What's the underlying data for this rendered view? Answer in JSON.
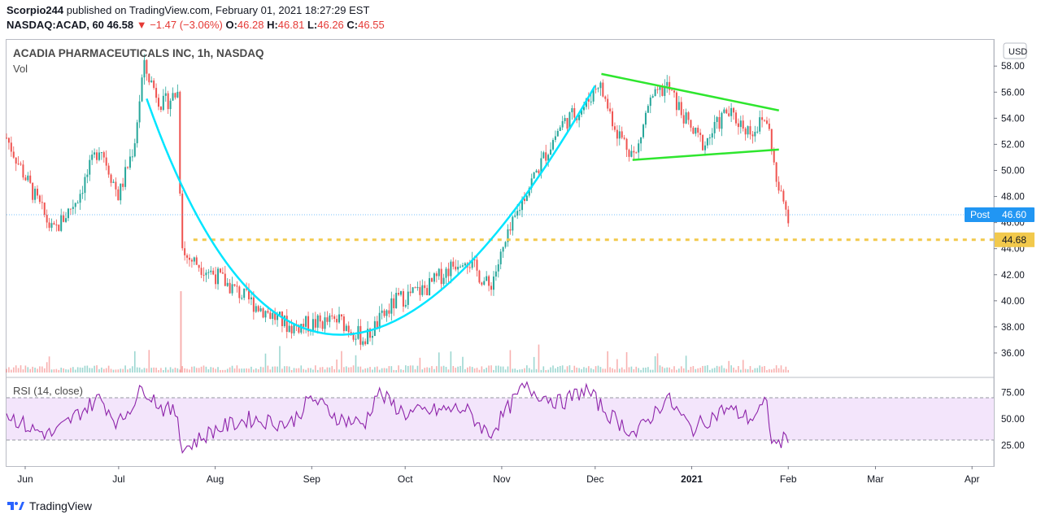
{
  "header": {
    "publisher": "Scorpio244",
    "published_text": "published on TradingView.com, February 01, 2021 18:27:29 EST",
    "symbol": "NASDAQ:ACAD, 60",
    "last": "46.58",
    "change": "−1.47 (−3.06%)",
    "o_label": "O:",
    "o_value": "46.28",
    "h_label": "H:",
    "h_value": "46.81",
    "l_label": "L:",
    "l_value": "46.26",
    "c_label": "C:",
    "c_value": "46.55"
  },
  "pane": {
    "title": "ACADIA PHARMACEUTICALS INC, 1h, NASDAQ",
    "vol_label": "Vol",
    "currency": "USD",
    "rsi_label": "RSI (14, close)",
    "post_label": "Post",
    "post_value": "46.60",
    "level_value": "44.68"
  },
  "footer": {
    "brand": "TradingView"
  },
  "colors": {
    "up": "#26a69a",
    "down": "#ef5350",
    "cup": "#00e5ff",
    "triangle": "#2ee62e",
    "support": "#f2c94c",
    "rsi": "#8e24aa",
    "rsi_band": "#f3e5fb",
    "post": "#2196f3"
  },
  "chart_data": {
    "type": "candlestick",
    "title": "ACADIA PHARMACEUTICALS INC, 1h, NASDAQ",
    "y_ticks": [
      "58.00",
      "56.00",
      "54.00",
      "52.00",
      "50.00",
      "48.00",
      "46.00",
      "44.00",
      "42.00",
      "40.00",
      "38.00",
      "36.00"
    ],
    "ylim": [
      34.5,
      59.2
    ],
    "x_ticks": [
      "Jun",
      "Jul",
      "Aug",
      "Sep",
      "Oct",
      "Nov",
      "Dec",
      "2021",
      "Feb",
      "Mar",
      "Apr"
    ],
    "price_path": [
      {
        "x": "May 26",
        "y": 52.5
      },
      {
        "x": "Jun 03",
        "y": 48.5
      },
      {
        "x": "Jun 10",
        "y": 45.2
      },
      {
        "x": "Jun 18",
        "y": 48.0
      },
      {
        "x": "Jun 25",
        "y": 52.0
      },
      {
        "x": "Jul 01",
        "y": 48.0
      },
      {
        "x": "Jul 06",
        "y": 52.0
      },
      {
        "x": "Jul 09",
        "y": 58.0
      },
      {
        "x": "Jul 15",
        "y": 55.0
      },
      {
        "x": "Jul 20",
        "y": 56.0
      },
      {
        "x": "Jul 21",
        "y": 45.5
      },
      {
        "x": "Jul 22",
        "y": 43.5
      },
      {
        "x": "Aug 01",
        "y": 42.0
      },
      {
        "x": "Aug 12",
        "y": 40.0
      },
      {
        "x": "Aug 25",
        "y": 38.0
      },
      {
        "x": "Sep 10",
        "y": 38.5
      },
      {
        "x": "Sep 18",
        "y": 37.0
      },
      {
        "x": "Sep 28",
        "y": 40.0
      },
      {
        "x": "Oct 08",
        "y": 41.0
      },
      {
        "x": "Oct 20",
        "y": 43.5
      },
      {
        "x": "Oct 28",
        "y": 41.0
      },
      {
        "x": "Nov 08",
        "y": 48.0
      },
      {
        "x": "Nov 20",
        "y": 53.5
      },
      {
        "x": "Nov 28",
        "y": 55.0
      },
      {
        "x": "Dec 02",
        "y": 56.8
      },
      {
        "x": "Dec 08",
        "y": 53.0
      },
      {
        "x": "Dec 14",
        "y": 51.0
      },
      {
        "x": "Dec 18",
        "y": 55.0
      },
      {
        "x": "Dec 24",
        "y": 56.5
      },
      {
        "x": "Jan 01",
        "y": 53.0
      },
      {
        "x": "Jan 05",
        "y": 52.0
      },
      {
        "x": "Jan 12",
        "y": 54.5
      },
      {
        "x": "Jan 20",
        "y": 53.0
      },
      {
        "x": "Jan 25",
        "y": 54.0
      },
      {
        "x": "Jan 27",
        "y": 51.5
      },
      {
        "x": "Jan 28",
        "y": 49.0
      },
      {
        "x": "Feb 01",
        "y": 46.6
      }
    ],
    "rsi": {
      "levels": [
        25.0,
        50.0,
        75.0
      ],
      "band": [
        30,
        70
      ],
      "path": [
        {
          "x": "May 26",
          "y": 55
        },
        {
          "x": "Jun 03",
          "y": 40
        },
        {
          "x": "Jun 10",
          "y": 35
        },
        {
          "x": "Jun 18",
          "y": 55
        },
        {
          "x": "Jun 25",
          "y": 70
        },
        {
          "x": "Jul 01",
          "y": 45
        },
        {
          "x": "Jul 09",
          "y": 80
        },
        {
          "x": "Jul 15",
          "y": 60
        },
        {
          "x": "Jul 20",
          "y": 55
        },
        {
          "x": "Jul 21",
          "y": 20
        },
        {
          "x": "Aug 01",
          "y": 40
        },
        {
          "x": "Aug 12",
          "y": 50
        },
        {
          "x": "Aug 25",
          "y": 45
        },
        {
          "x": "Sep 01",
          "y": 70
        },
        {
          "x": "Sep 10",
          "y": 50
        },
        {
          "x": "Sep 18",
          "y": 45
        },
        {
          "x": "Sep 22",
          "y": 75
        },
        {
          "x": "Oct 01",
          "y": 55
        },
        {
          "x": "Oct 20",
          "y": 60
        },
        {
          "x": "Oct 28",
          "y": 35
        },
        {
          "x": "Nov 08",
          "y": 80
        },
        {
          "x": "Nov 20",
          "y": 65
        },
        {
          "x": "Nov 28",
          "y": 78
        },
        {
          "x": "Dec 05",
          "y": 55
        },
        {
          "x": "Dec 14",
          "y": 35
        },
        {
          "x": "Dec 24",
          "y": 70
        },
        {
          "x": "Jan 01",
          "y": 40
        },
        {
          "x": "Jan 12",
          "y": 60
        },
        {
          "x": "Jan 20",
          "y": 50
        },
        {
          "x": "Jan 25",
          "y": 65
        },
        {
          "x": "Jan 27",
          "y": 25
        },
        {
          "x": "Feb 01",
          "y": 32
        }
      ]
    },
    "annotations": {
      "cup": [
        {
          "x": "Jul 10",
          "y": 55.5
        },
        {
          "x": "Sep 11",
          "y": 37.4
        },
        {
          "x": "Dec 01",
          "y": 56.5
        }
      ],
      "triangle_upper": [
        {
          "x": "Dec 03",
          "y": 57.4
        },
        {
          "x": "Jan 29",
          "y": 54.6
        }
      ],
      "triangle_lower": [
        {
          "x": "Dec 13",
          "y": 50.8
        },
        {
          "x": "Jan 29",
          "y": 51.6
        }
      ],
      "support_level": 44.68,
      "last_price": 46.6
    }
  }
}
